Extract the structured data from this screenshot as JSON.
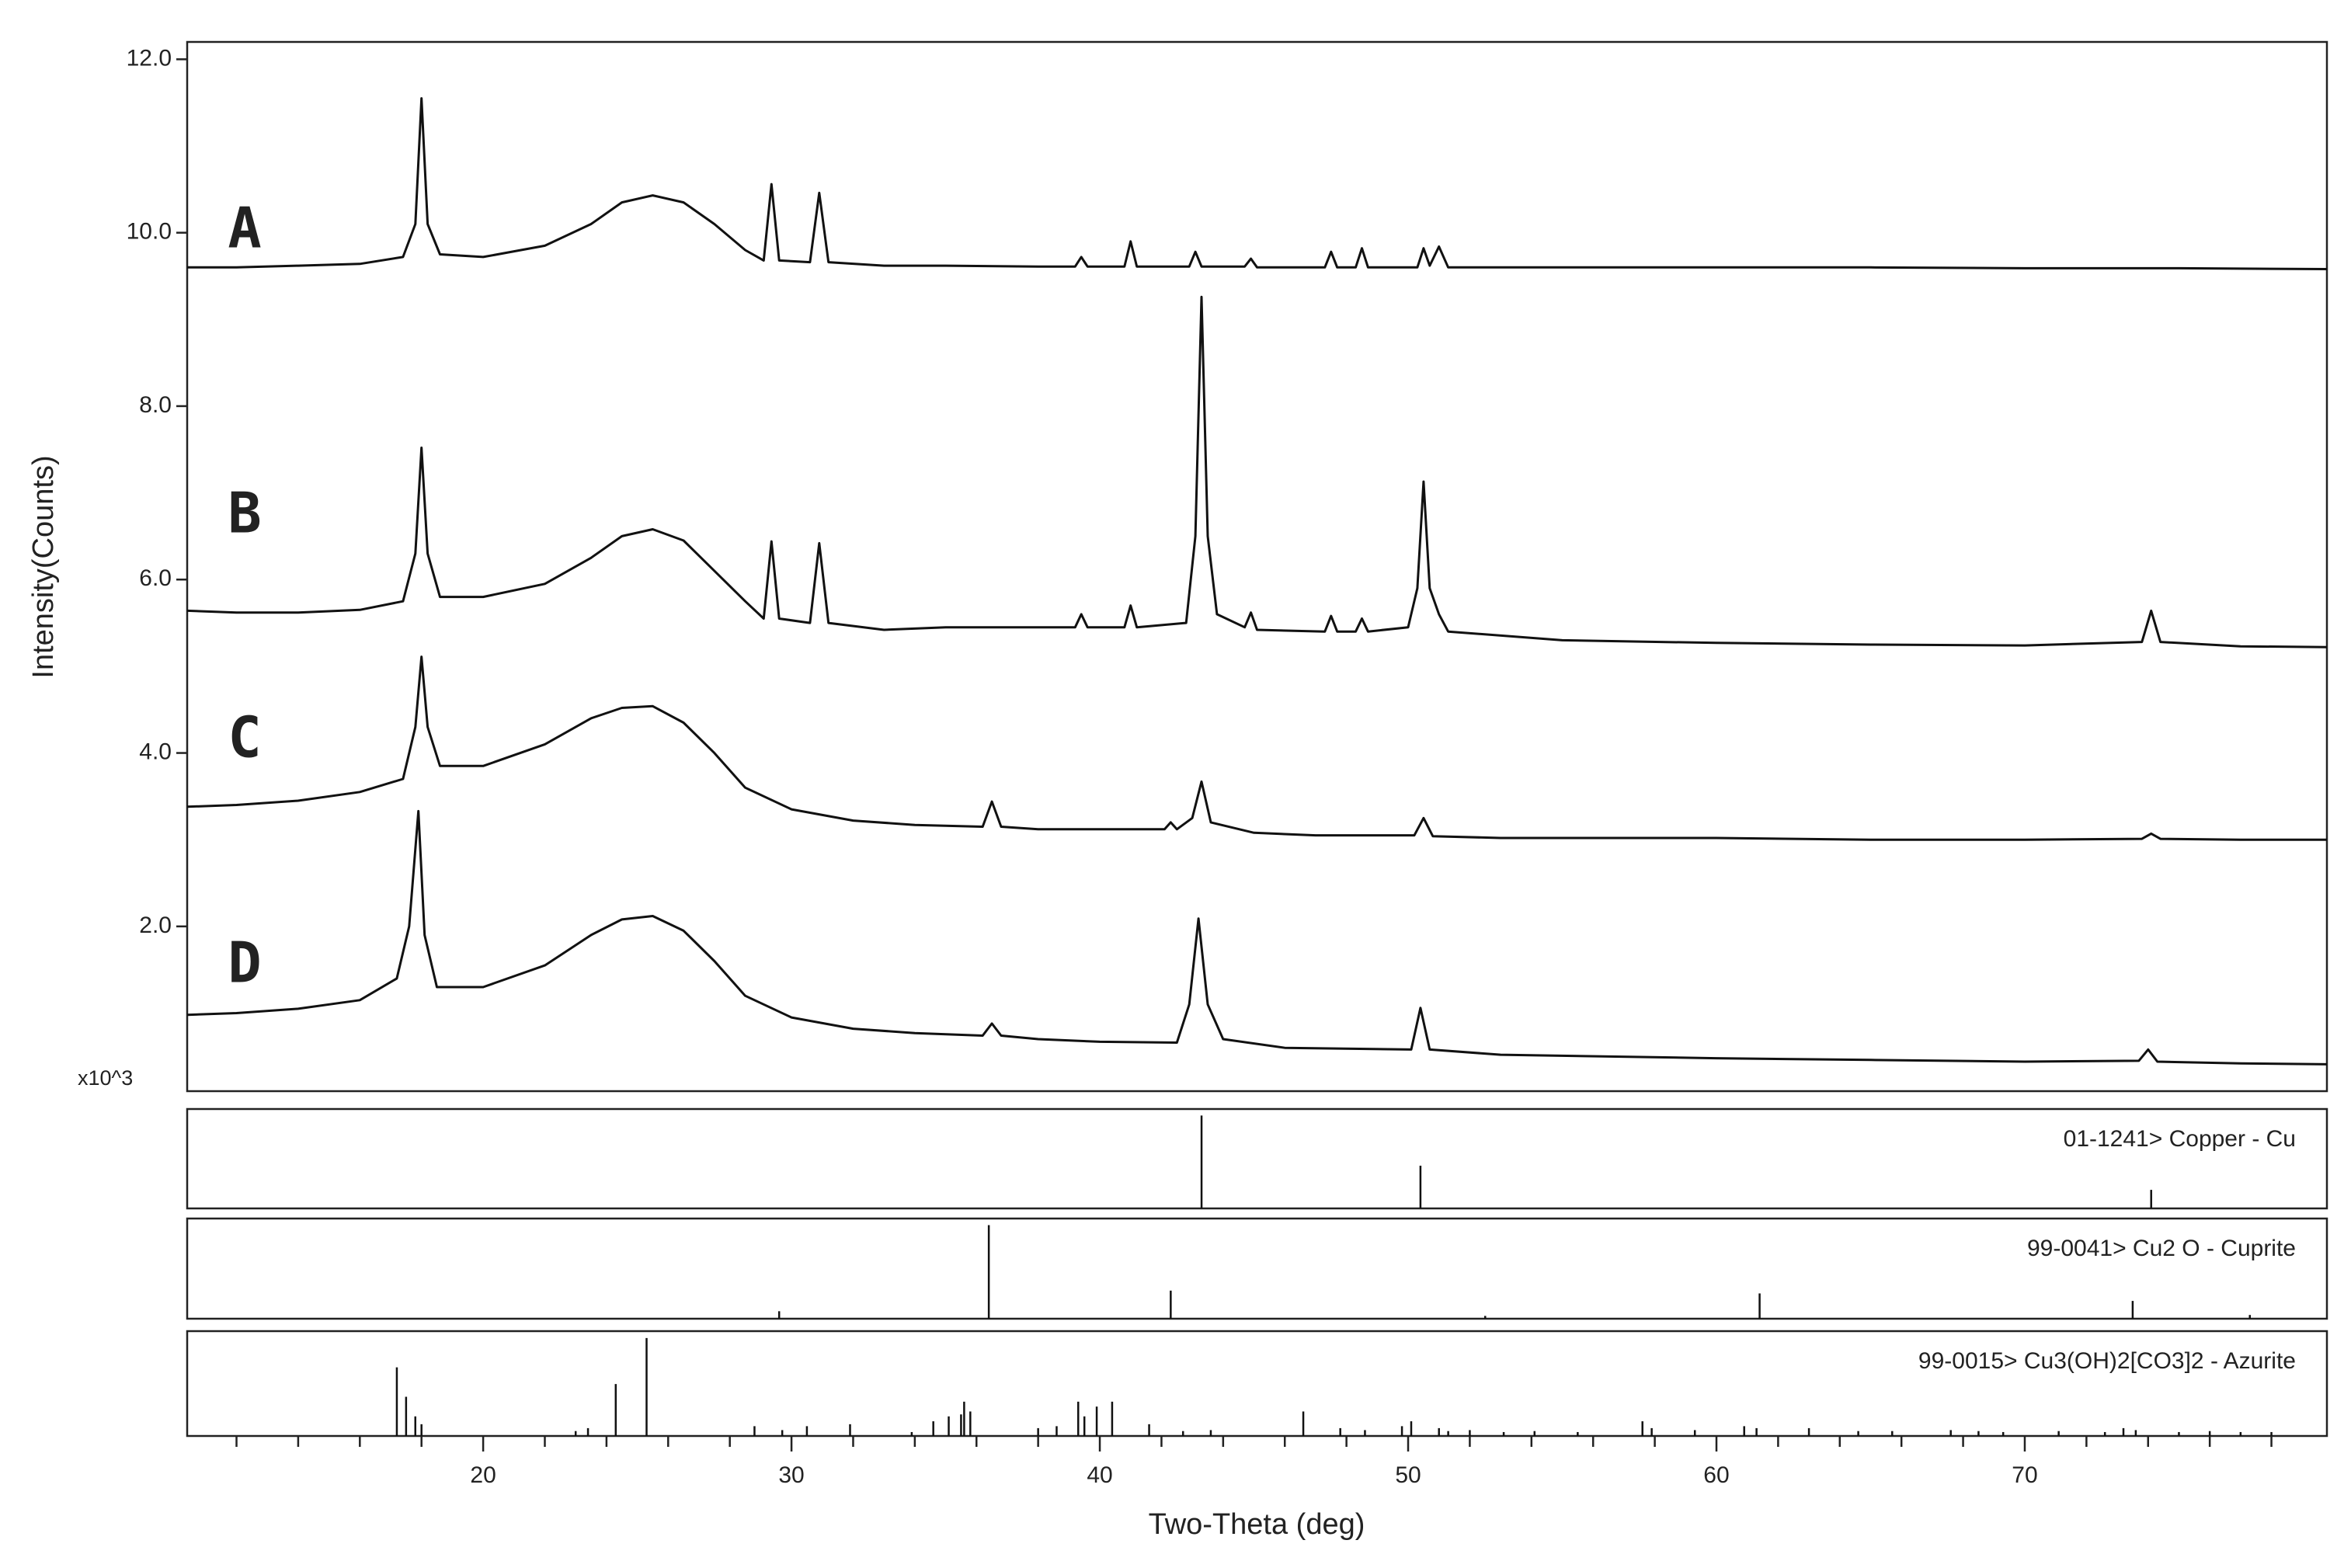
{
  "chart_data": [
    {
      "type": "line",
      "xlabel": "Two-Theta (deg)",
      "ylabel": "Intensity(Counts)",
      "y_scale_label": "x10^3",
      "xlim": [
        10.4,
        79.8
      ],
      "ylim": [
        0.1,
        12.2
      ],
      "xticks": [
        20,
        30,
        40,
        50,
        60,
        70
      ],
      "xminor_ticks": [
        12,
        14,
        16,
        18,
        22,
        24,
        26,
        28,
        32,
        34,
        36,
        38,
        42,
        44,
        46,
        48,
        52,
        54,
        56,
        58,
        62,
        64,
        66,
        68,
        72,
        74,
        76,
        78
      ],
      "yticks": [
        {
          "value": 2,
          "label": "2.0"
        },
        {
          "value": 4,
          "label": "4.0"
        },
        {
          "value": 6,
          "label": "6.0"
        },
        {
          "value": 8,
          "label": "8.0"
        },
        {
          "value": 10,
          "label": "10.0"
        },
        {
          "value": 12,
          "label": "12.0"
        }
      ],
      "series": [
        {
          "name": "A",
          "color": "#111111",
          "x": [
            10.4,
            12,
            14,
            16,
            17.4,
            17.8,
            18.0,
            18.2,
            18.6,
            20,
            22,
            23.5,
            24.5,
            25.5,
            26.5,
            27.5,
            28.5,
            29.1,
            29.35,
            29.6,
            30.6,
            30.9,
            31.2,
            33,
            35,
            38,
            39.2,
            39.4,
            39.6,
            40.8,
            41.0,
            41.2,
            42.9,
            43.1,
            43.3,
            44.7,
            44.9,
            45.1,
            47.3,
            47.5,
            47.7,
            48.3,
            48.5,
            48.7,
            50.3,
            50.5,
            50.7,
            51.0,
            51.3,
            55,
            60,
            65,
            70,
            75,
            79.8
          ],
          "values": [
            9.6,
            9.6,
            9.62,
            9.64,
            9.72,
            10.1,
            11.55,
            10.1,
            9.75,
            9.72,
            9.85,
            10.1,
            10.35,
            10.43,
            10.35,
            10.1,
            9.8,
            9.68,
            10.56,
            9.68,
            9.66,
            10.46,
            9.66,
            9.62,
            9.62,
            9.61,
            9.61,
            9.72,
            9.61,
            9.61,
            9.9,
            9.61,
            9.61,
            9.78,
            9.61,
            9.61,
            9.7,
            9.6,
            9.6,
            9.78,
            9.6,
            9.6,
            9.82,
            9.6,
            9.6,
            9.82,
            9.62,
            9.84,
            9.6,
            9.6,
            9.6,
            9.6,
            9.59,
            9.59,
            9.58
          ]
        },
        {
          "name": "B",
          "color": "#111111",
          "x": [
            10.4,
            12,
            14,
            16,
            17.4,
            17.8,
            18.0,
            18.2,
            18.6,
            20,
            22,
            23.5,
            24.5,
            25.5,
            26.5,
            27.5,
            28.5,
            29.1,
            29.35,
            29.6,
            30.6,
            30.9,
            31.2,
            33,
            35,
            38,
            39.2,
            39.4,
            39.6,
            40.8,
            41.0,
            41.2,
            42.8,
            43.1,
            43.3,
            43.5,
            43.8,
            44.7,
            44.9,
            45.1,
            47.3,
            47.5,
            47.7,
            48.3,
            48.5,
            48.7,
            50.0,
            50.3,
            50.5,
            50.7,
            51.0,
            51.3,
            55,
            60,
            65,
            70,
            73.8,
            74.1,
            74.4,
            77,
            79.8
          ],
          "values": [
            5.64,
            5.62,
            5.62,
            5.65,
            5.75,
            6.3,
            7.52,
            6.3,
            5.8,
            5.8,
            5.95,
            6.25,
            6.5,
            6.58,
            6.45,
            6.1,
            5.75,
            5.55,
            6.44,
            5.55,
            5.5,
            6.42,
            5.5,
            5.42,
            5.45,
            5.45,
            5.45,
            5.6,
            5.45,
            5.45,
            5.7,
            5.45,
            5.5,
            6.5,
            9.26,
            6.5,
            5.6,
            5.45,
            5.62,
            5.42,
            5.4,
            5.58,
            5.4,
            5.4,
            5.55,
            5.4,
            5.45,
            5.9,
            7.13,
            5.9,
            5.6,
            5.4,
            5.3,
            5.27,
            5.25,
            5.24,
            5.28,
            5.64,
            5.28,
            5.23,
            5.22
          ]
        },
        {
          "name": "C",
          "color": "#111111",
          "x": [
            10.4,
            12,
            14,
            16,
            17.4,
            17.8,
            18.0,
            18.2,
            18.6,
            20,
            22,
            23.5,
            24.5,
            25.5,
            26.5,
            27.5,
            28.5,
            30,
            32,
            34,
            36.2,
            36.5,
            36.8,
            38,
            40,
            42.1,
            42.3,
            42.5,
            43.0,
            43.3,
            43.6,
            45,
            47,
            50.2,
            50.5,
            50.8,
            53,
            60,
            65,
            70,
            73.8,
            74.1,
            74.4,
            77,
            79.8
          ],
          "values": [
            3.38,
            3.4,
            3.45,
            3.55,
            3.7,
            4.3,
            5.11,
            4.3,
            3.85,
            3.85,
            4.1,
            4.4,
            4.52,
            4.54,
            4.35,
            4.0,
            3.6,
            3.35,
            3.22,
            3.17,
            3.15,
            3.44,
            3.15,
            3.12,
            3.12,
            3.12,
            3.2,
            3.12,
            3.25,
            3.67,
            3.2,
            3.08,
            3.05,
            3.05,
            3.25,
            3.04,
            3.02,
            3.02,
            3.0,
            3.0,
            3.01,
            3.07,
            3.01,
            3.0,
            3.0
          ]
        },
        {
          "name": "D",
          "color": "#111111",
          "x": [
            10.4,
            12,
            14,
            16,
            17.2,
            17.6,
            17.9,
            18.1,
            18.5,
            20,
            22,
            23.5,
            24.5,
            25.5,
            26.5,
            27.5,
            28.5,
            30,
            32,
            34,
            36.2,
            36.5,
            36.8,
            38,
            40,
            42.5,
            42.9,
            43.2,
            43.5,
            44,
            46,
            50.1,
            50.4,
            50.7,
            53,
            60,
            65,
            70,
            73.7,
            74.0,
            74.3,
            77,
            79.8
          ],
          "values": [
            0.98,
            1.0,
            1.05,
            1.15,
            1.4,
            2.0,
            3.33,
            1.9,
            1.3,
            1.3,
            1.55,
            1.9,
            2.08,
            2.12,
            1.95,
            1.6,
            1.2,
            0.95,
            0.82,
            0.77,
            0.74,
            0.88,
            0.74,
            0.7,
            0.67,
            0.66,
            1.1,
            2.09,
            1.1,
            0.7,
            0.6,
            0.58,
            1.06,
            0.58,
            0.52,
            0.48,
            0.46,
            0.44,
            0.45,
            0.58,
            0.44,
            0.42,
            0.41
          ]
        }
      ]
    },
    {
      "type": "stick",
      "title": "01-1241> Copper - Cu",
      "xlim": [
        10.4,
        79.8
      ],
      "ylim": [
        0,
        107
      ],
      "x": [
        43.3,
        50.4,
        74.1
      ],
      "values": [
        100,
        46,
        20
      ]
    },
    {
      "type": "stick",
      "title": "99-0041> Cu2 O - Cuprite",
      "xlim": [
        10.4,
        79.8
      ],
      "ylim": [
        0,
        107
      ],
      "x": [
        29.6,
        36.4,
        42.3,
        52.5,
        61.4,
        73.5,
        77.3
      ],
      "values": [
        8,
        100,
        30,
        3,
        27,
        19,
        4
      ]
    },
    {
      "type": "stick",
      "title": "99-0015> Cu3(OH)2[CO3]2 - Azurite",
      "xlim": [
        10.4,
        79.8
      ],
      "ylim": [
        0,
        107
      ],
      "x": [
        17.2,
        17.5,
        17.8,
        18.0,
        23.0,
        23.4,
        24.3,
        25.3,
        28.8,
        29.7,
        30.5,
        31.9,
        33.9,
        34.6,
        35.1,
        35.5,
        35.6,
        35.8,
        38.0,
        38.6,
        39.3,
        39.5,
        39.9,
        40.4,
        41.6,
        42.7,
        43.6,
        46.6,
        47.8,
        48.6,
        49.8,
        50.1,
        51.0,
        51.3,
        52.0,
        53.1,
        54.1,
        55.5,
        57.6,
        57.9,
        59.3,
        60.9,
        61.3,
        63.0,
        64.6,
        65.7,
        67.6,
        68.5,
        69.3,
        71.1,
        72.6,
        73.2,
        73.6,
        75.0,
        76.0,
        77.0,
        78.0
      ],
      "values": [
        70,
        40,
        20,
        12,
        5,
        8,
        53,
        100,
        10,
        6,
        10,
        12,
        4,
        15,
        20,
        22,
        35,
        25,
        8,
        10,
        35,
        20,
        30,
        35,
        12,
        5,
        6,
        25,
        8,
        6,
        10,
        15,
        8,
        5,
        6,
        4,
        5,
        4,
        15,
        8,
        6,
        10,
        8,
        8,
        5,
        5,
        6,
        5,
        4,
        5,
        4,
        8,
        6,
        4,
        5,
        4,
        4
      ]
    }
  ]
}
